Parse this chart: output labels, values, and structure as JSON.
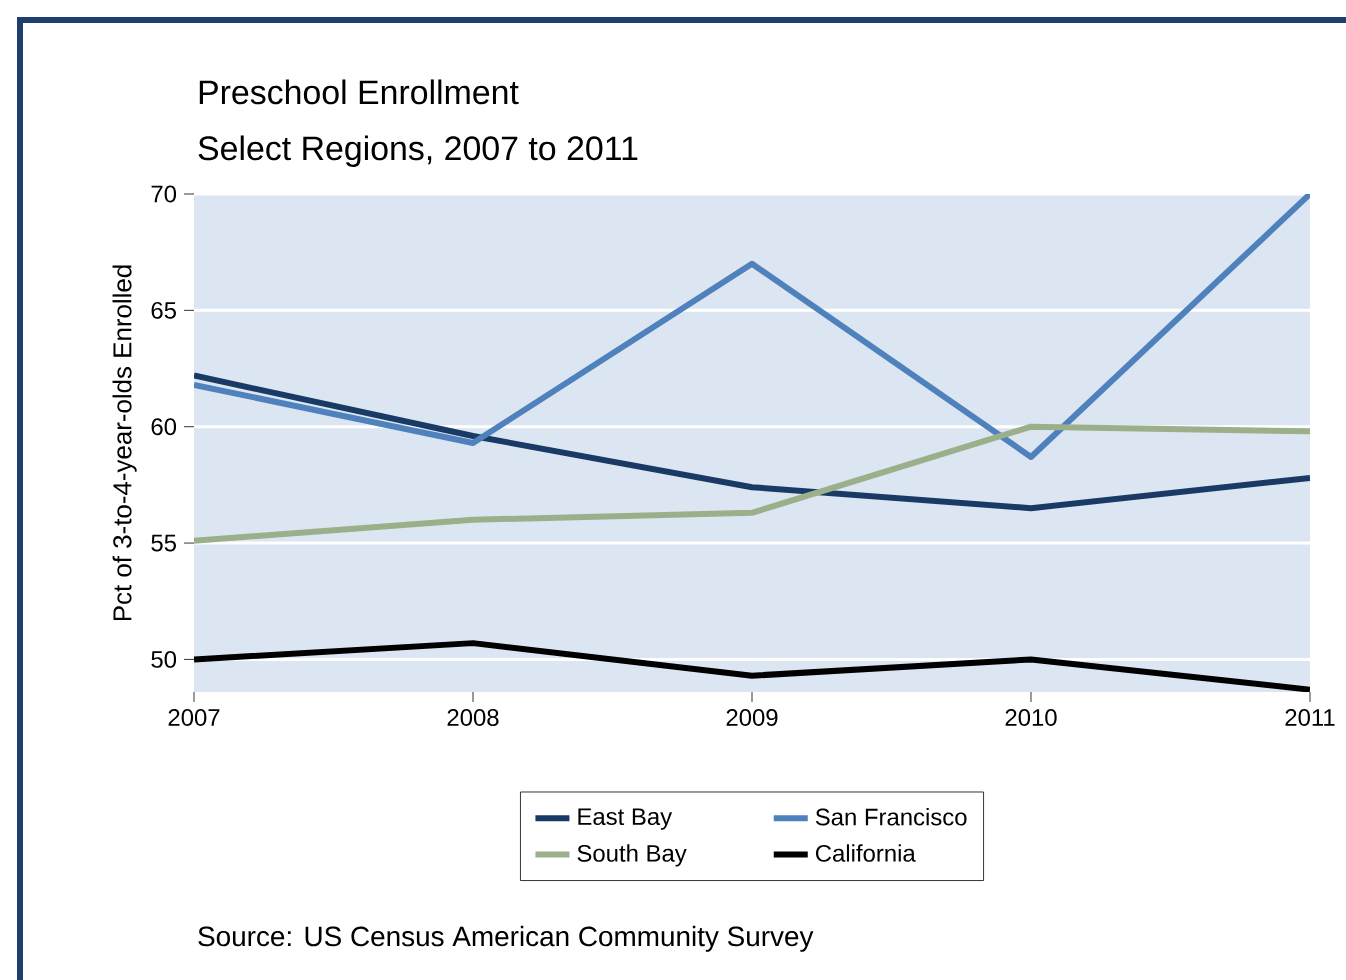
{
  "chart_data": {
    "type": "line",
    "title": "Preschool Enrollment",
    "subtitle": "Select Regions, 2007 to 2011",
    "ylabel": "Pct of 3-to-4-year-olds Enrolled",
    "x": [
      2007,
      2008,
      2009,
      2010,
      2011
    ],
    "xlim": [
      2007,
      2011
    ],
    "xticks": [
      2007,
      2008,
      2009,
      2010,
      2011
    ],
    "ylim": [
      48.6,
      70
    ],
    "yticks": [
      50,
      55,
      60,
      65,
      70
    ],
    "grid": "y",
    "legend": "bottom",
    "line_style": "solid",
    "series": [
      {
        "name": "East Bay",
        "color": "#1a3a66",
        "values": [
          62.2,
          59.6,
          57.4,
          56.5,
          57.8
        ]
      },
      {
        "name": "San Francisco",
        "color": "#4f81bd",
        "values": [
          61.8,
          59.3,
          67.0,
          58.7,
          70.0
        ]
      },
      {
        "name": "South Bay",
        "color": "#9bb08a",
        "values": [
          55.1,
          56.0,
          56.3,
          60.0,
          59.8
        ]
      },
      {
        "name": "California",
        "color": "#000000",
        "values": [
          50.0,
          50.7,
          49.3,
          50.0,
          48.7
        ]
      }
    ],
    "annotations": [
      "Source: US Census American Community Survey"
    ]
  }
}
